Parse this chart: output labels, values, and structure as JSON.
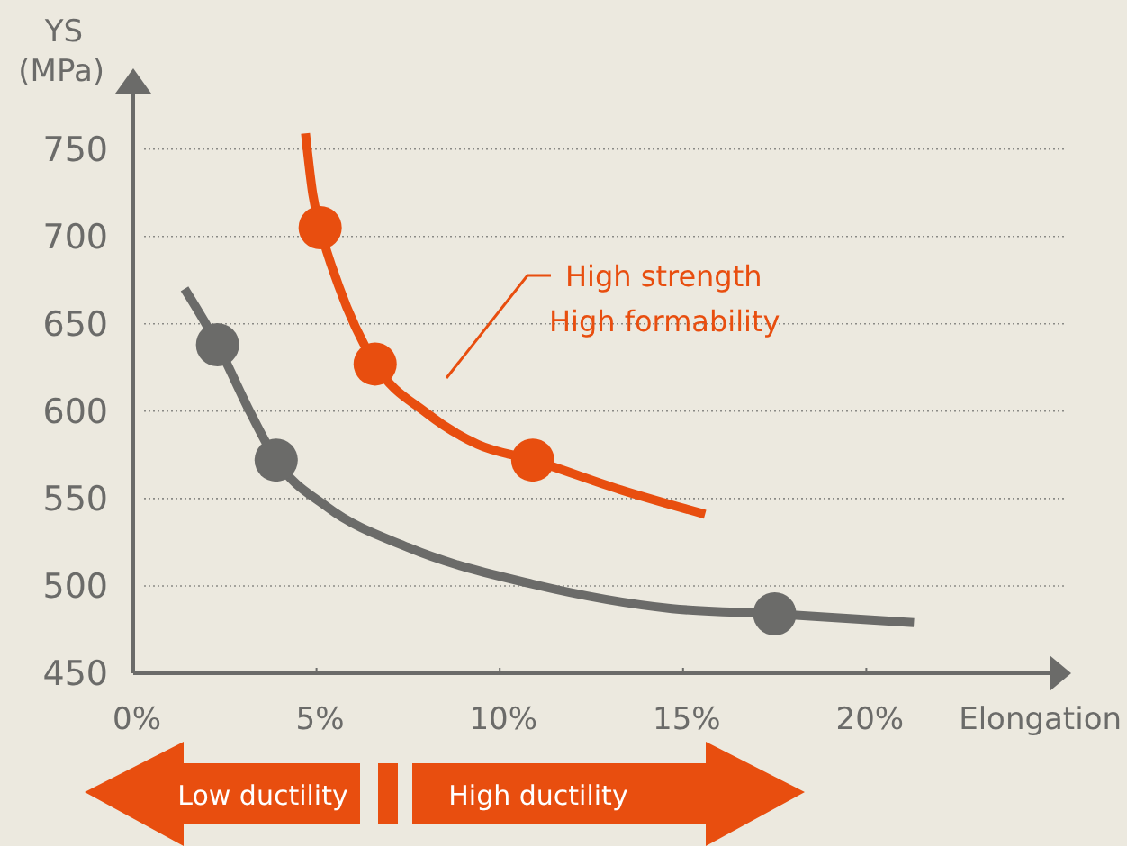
{
  "chart_data": {
    "type": "line",
    "xlabel": "Elongation",
    "ylabel": "YS (MPa)",
    "xlim": [
      0,
      25
    ],
    "ylim": [
      450,
      790
    ],
    "xticks": [
      {
        "value": 0,
        "label": "0%"
      },
      {
        "value": 5,
        "label": "5%"
      },
      {
        "value": 10,
        "label": "10%"
      },
      {
        "value": 15,
        "label": "15%"
      },
      {
        "value": 20,
        "label": "20%"
      }
    ],
    "yticks": [
      450,
      500,
      550,
      600,
      650,
      700,
      750
    ],
    "grid": "y",
    "series": [
      {
        "color": "#e84e0f",
        "marker": "none",
        "x": [
          4.7,
          4.9,
          5.1,
          5.6,
          6.6,
          8.0,
          9.4,
          10.9,
          13.3,
          15.6
        ],
        "values": [
          759,
          724,
          705,
          672,
          627,
          599,
          581,
          572,
          555,
          541
        ]
      },
      {
        "color": "#6b6b69",
        "marker": "none",
        "x": [
          1.4,
          2.3,
          3.2,
          3.9,
          5.3,
          7.5,
          10.9,
          14.7,
          17.5,
          21.3
        ],
        "values": [
          670,
          638,
          599,
          572,
          545,
          522,
          501,
          487,
          484,
          479
        ]
      },
      {
        "type": "scatter",
        "color": "#e84e0f",
        "marker": "circle",
        "x": [
          5.1,
          6.6,
          10.9
        ],
        "values": [
          705,
          627,
          572
        ]
      },
      {
        "type": "scatter",
        "color": "#6b6b69",
        "marker": "circle",
        "x": [
          2.3,
          3.9,
          17.5
        ],
        "values": [
          638,
          572,
          484
        ]
      }
    ],
    "annotations": [
      "High strength",
      "High formability",
      "Low ductility",
      "High ductility"
    ]
  }
}
